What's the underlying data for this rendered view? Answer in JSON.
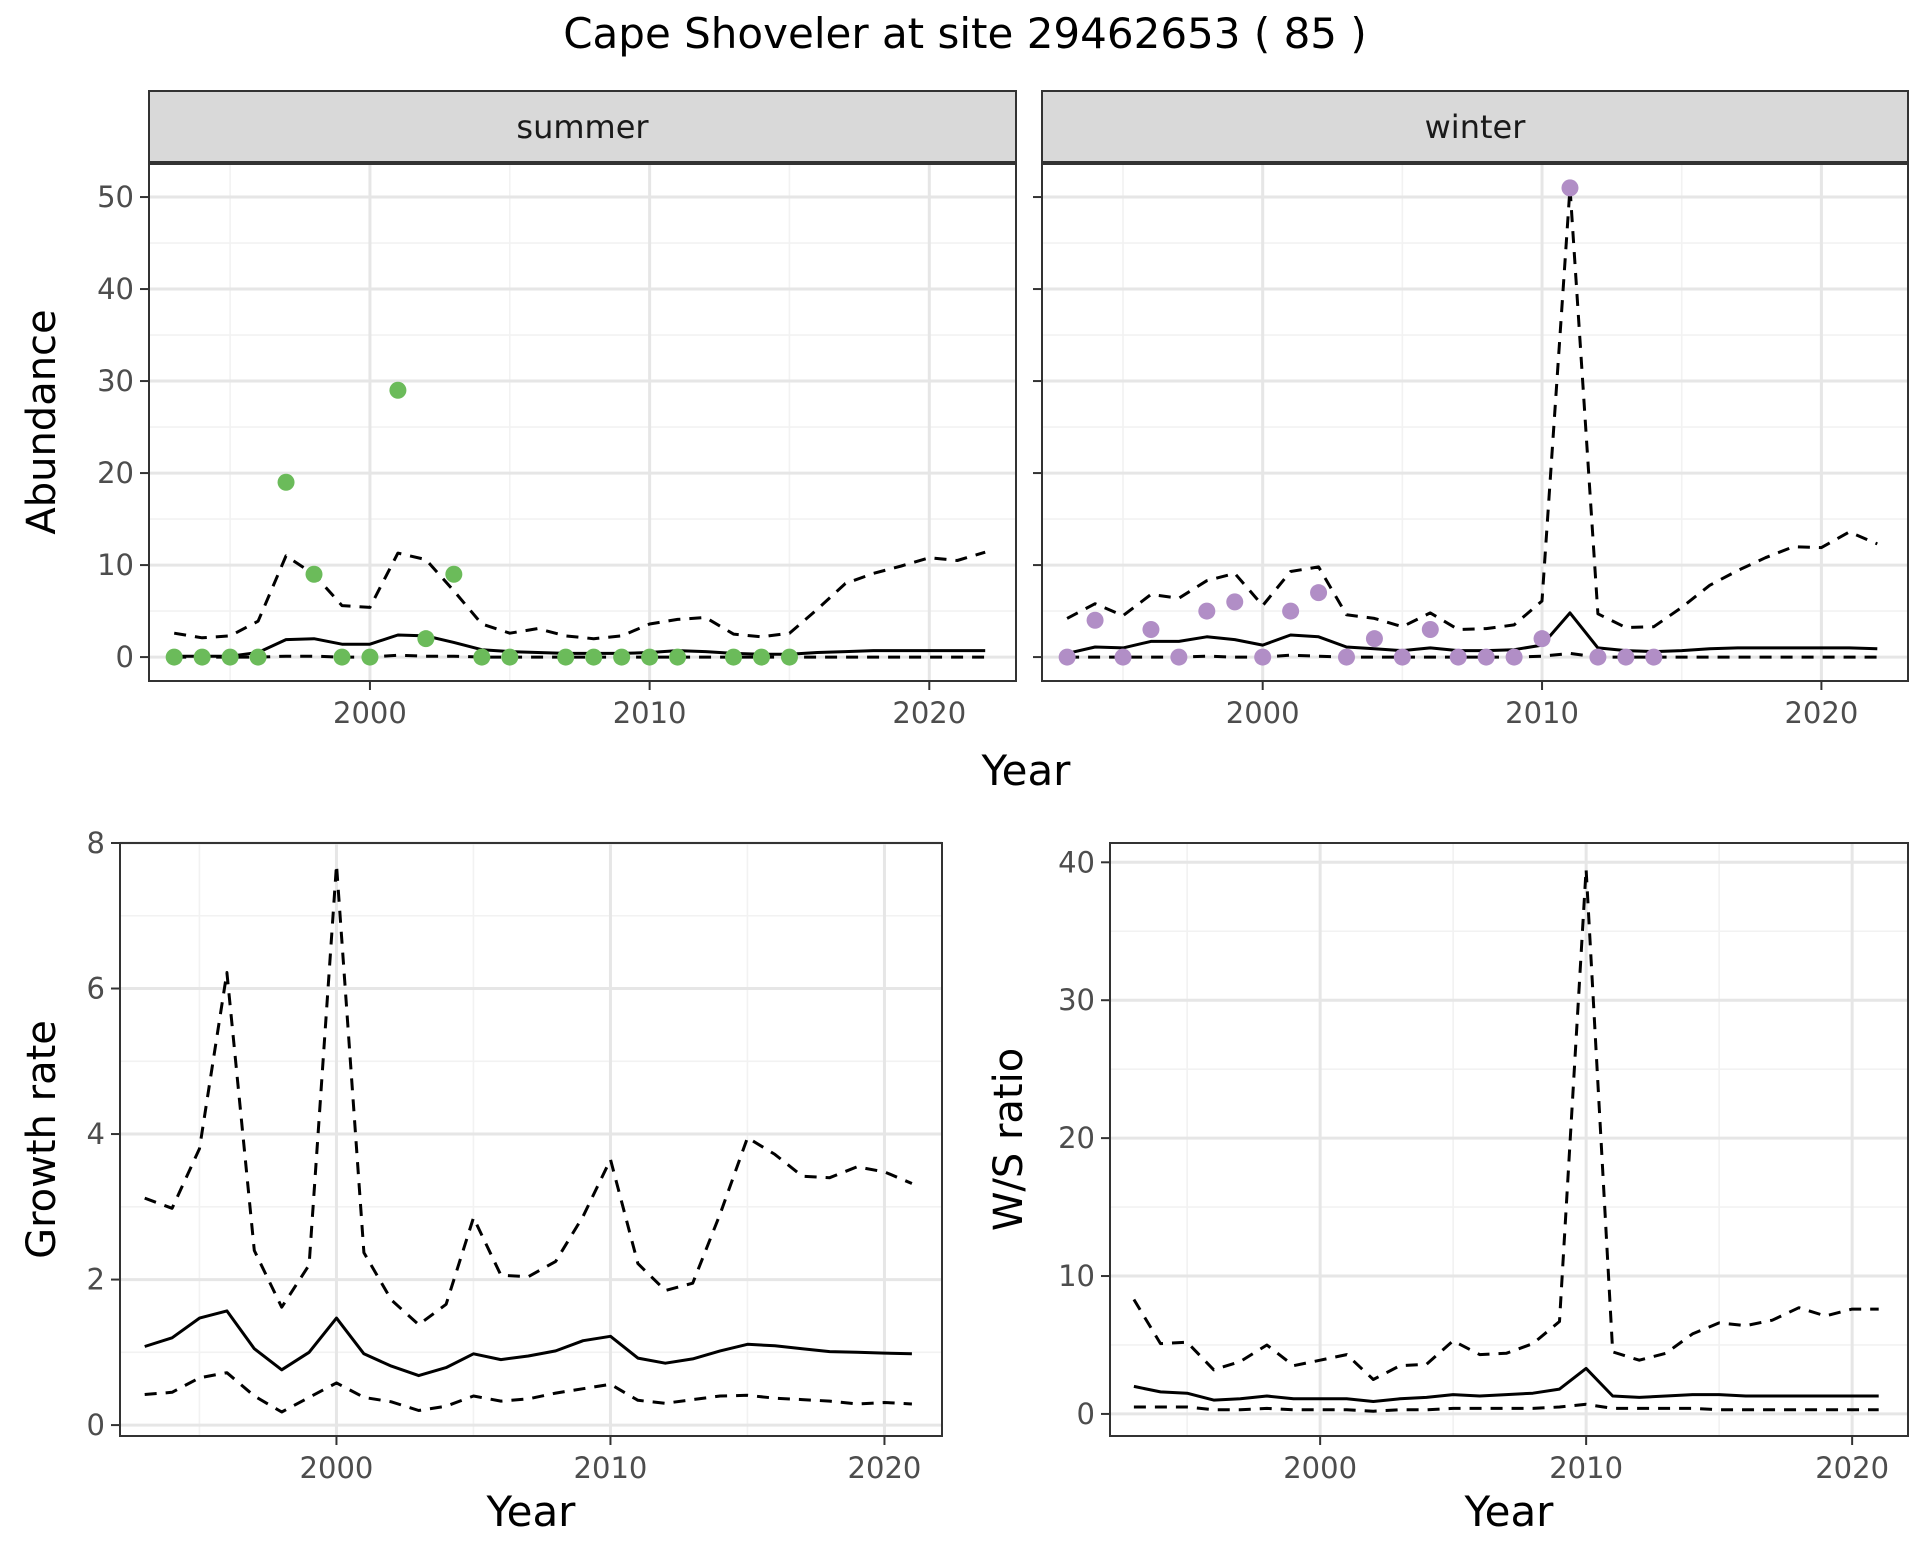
{
  "figure": {
    "title": "Cape Shoveler at site 29462653 ( 85 )",
    "shared_xlabel": "Year"
  },
  "colors": {
    "summer_points": "#6bbb5a",
    "winter_points": "#b18ec6",
    "line": "#000000",
    "strip_bg": "#d9d9d9",
    "grid_major": "#e6e6e6",
    "grid_minor": "#f2f2f2"
  },
  "chart_data": [
    {
      "type": "line",
      "panel": "summer",
      "strip_label": "summer",
      "xlabel": "",
      "ylabel": "Abundance",
      "xlim": [
        1992.1,
        2023.1
      ],
      "ylim": [
        -2.6,
        53.7
      ],
      "xticks": [
        2000,
        2010,
        2020
      ],
      "yticks": [
        0,
        10,
        20,
        30,
        40,
        50
      ],
      "points": {
        "x": [
          1993,
          1994,
          1995,
          1996,
          1997,
          1998,
          1999,
          2000,
          2001,
          2002,
          2003,
          2004,
          2005,
          2007,
          2008,
          2009,
          2010,
          2011,
          2013,
          2014,
          2015
        ],
        "y": [
          0,
          0,
          0,
          0,
          19,
          9,
          0,
          0,
          29,
          2,
          9,
          0,
          0,
          0,
          0,
          0,
          0,
          0,
          0,
          0,
          0
        ]
      },
      "series": [
        {
          "style": "solid",
          "x": [
            1993,
            1994,
            1995,
            1996,
            1997,
            1998,
            1999,
            2000,
            2001,
            2002,
            2003,
            2004,
            2005,
            2006,
            2007,
            2008,
            2009,
            2010,
            2011,
            2012,
            2013,
            2014,
            2015,
            2016,
            2017,
            2018,
            2019,
            2020,
            2021,
            2022
          ],
          "y": [
            0.1,
            0.1,
            0.1,
            0.5,
            1.9,
            2.0,
            1.4,
            1.4,
            2.4,
            2.3,
            1.6,
            0.8,
            0.6,
            0.5,
            0.4,
            0.4,
            0.4,
            0.5,
            0.7,
            0.6,
            0.4,
            0.3,
            0.3,
            0.5,
            0.6,
            0.7,
            0.7,
            0.7,
            0.7,
            0.7
          ]
        },
        {
          "style": "dashed",
          "x": [
            1993,
            1994,
            1995,
            1996,
            1997,
            1998,
            1999,
            2000,
            2001,
            2002,
            2003,
            2004,
            2005,
            2006,
            2007,
            2008,
            2009,
            2010,
            2011,
            2012,
            2013,
            2014,
            2015,
            2016,
            2017,
            2018,
            2019,
            2020,
            2021,
            2022
          ],
          "y": [
            2.6,
            2.1,
            2.3,
            3.9,
            11.0,
            9.0,
            5.6,
            5.4,
            11.3,
            10.6,
            7.2,
            3.6,
            2.6,
            3.1,
            2.3,
            2.0,
            2.3,
            3.6,
            4.1,
            4.3,
            2.5,
            2.2,
            2.6,
            5.2,
            8.0,
            9.1,
            9.9,
            10.8,
            10.5,
            11.4
          ]
        },
        {
          "style": "dashed",
          "x": [
            1993,
            1994,
            1995,
            1996,
            1997,
            1998,
            1999,
            2000,
            2001,
            2002,
            2003,
            2004,
            2005,
            2006,
            2007,
            2008,
            2009,
            2010,
            2011,
            2012,
            2013,
            2014,
            2015,
            2016,
            2017,
            2018,
            2019,
            2020,
            2021,
            2022
          ],
          "y": [
            0,
            0,
            0,
            0,
            0.1,
            0.1,
            0,
            0,
            0.2,
            0.1,
            0.1,
            0,
            0,
            0,
            0,
            0,
            0,
            0,
            0,
            0,
            0,
            0,
            0,
            0,
            0,
            0,
            0,
            0,
            0,
            0
          ]
        }
      ]
    },
    {
      "type": "line",
      "panel": "winter",
      "strip_label": "winter",
      "xlabel": "",
      "ylabel": "",
      "xlim": [
        1992.1,
        2023.1
      ],
      "ylim": [
        -2.6,
        53.7
      ],
      "xticks": [
        2000,
        2010,
        2020
      ],
      "yticks": [
        0,
        10,
        20,
        30,
        40,
        50
      ],
      "points": {
        "x": [
          1993,
          1994,
          1995,
          1996,
          1997,
          1998,
          1999,
          2000,
          2001,
          2002,
          2003,
          2004,
          2005,
          2006,
          2007,
          2008,
          2009,
          2010,
          2011,
          2012,
          2013,
          2014
        ],
        "y": [
          0,
          4,
          0,
          3,
          0,
          5,
          6,
          0,
          5,
          7,
          0,
          2,
          0,
          3,
          0,
          0,
          0,
          2,
          51,
          0,
          0,
          0
        ]
      },
      "series": [
        {
          "style": "solid",
          "x": [
            1993,
            1994,
            1995,
            1996,
            1997,
            1998,
            1999,
            2000,
            2001,
            2002,
            2003,
            2004,
            2005,
            2006,
            2007,
            2008,
            2009,
            2010,
            2011,
            2012,
            2013,
            2014,
            2015,
            2016,
            2017,
            2018,
            2019,
            2020,
            2021,
            2022
          ],
          "y": [
            0.4,
            1.1,
            1.0,
            1.7,
            1.7,
            2.2,
            1.9,
            1.3,
            2.4,
            2.2,
            1.1,
            0.9,
            0.7,
            1.0,
            0.7,
            0.7,
            0.8,
            1.3,
            4.8,
            1.0,
            0.7,
            0.6,
            0.7,
            0.9,
            1.0,
            1.0,
            1.0,
            1.0,
            1.0,
            0.9
          ]
        },
        {
          "style": "dashed",
          "x": [
            1993,
            1994,
            1995,
            1996,
            1997,
            1998,
            1999,
            2000,
            2001,
            2002,
            2003,
            2004,
            2005,
            2006,
            2007,
            2008,
            2009,
            2010,
            2011,
            2012,
            2013,
            2014,
            2015,
            2016,
            2017,
            2018,
            2019,
            2020,
            2021,
            2022
          ],
          "y": [
            4.2,
            5.8,
            4.5,
            6.8,
            6.4,
            8.3,
            9.1,
            5.6,
            9.3,
            9.8,
            4.6,
            4.2,
            3.3,
            4.8,
            3.0,
            3.1,
            3.5,
            6.1,
            51.0,
            4.7,
            3.2,
            3.3,
            5.4,
            7.8,
            9.4,
            10.8,
            12.0,
            11.9,
            13.6,
            12.3
          ]
        },
        {
          "style": "dashed",
          "x": [
            1993,
            1994,
            1995,
            1996,
            1997,
            1998,
            1999,
            2000,
            2001,
            2002,
            2003,
            2004,
            2005,
            2006,
            2007,
            2008,
            2009,
            2010,
            2011,
            2012,
            2013,
            2014,
            2015,
            2016,
            2017,
            2018,
            2019,
            2020,
            2021,
            2022
          ],
          "y": [
            0,
            0,
            0,
            0,
            0,
            0.1,
            0,
            0,
            0.2,
            0.1,
            0,
            0,
            0,
            0,
            0,
            0,
            0,
            0.1,
            0.4,
            0,
            0,
            0,
            0,
            0,
            0,
            0,
            0,
            0,
            0,
            0
          ]
        }
      ]
    },
    {
      "type": "line",
      "panel": "growth",
      "strip_label": "",
      "xlabel": "Year",
      "ylabel": "Growth rate",
      "xlim": [
        1992.1,
        2022.1
      ],
      "ylim": [
        -0.15,
        8.0
      ],
      "xticks": [
        2000,
        2010,
        2020
      ],
      "yticks": [
        0,
        2,
        4,
        6,
        8
      ],
      "series": [
        {
          "style": "solid",
          "x": [
            1993,
            1994,
            1995,
            1996,
            1997,
            1998,
            1999,
            2000,
            2001,
            2002,
            2003,
            2004,
            2005,
            2006,
            2007,
            2008,
            2009,
            2010,
            2011,
            2012,
            2013,
            2014,
            2015,
            2016,
            2017,
            2018,
            2019,
            2020,
            2021
          ],
          "y": [
            1.08,
            1.2,
            1.47,
            1.57,
            1.05,
            0.76,
            1.0,
            1.47,
            0.98,
            0.81,
            0.68,
            0.79,
            0.98,
            0.9,
            0.95,
            1.02,
            1.16,
            1.22,
            0.92,
            0.85,
            0.91,
            1.02,
            1.11,
            1.09,
            1.05,
            1.01,
            1.0,
            0.99,
            0.98
          ]
        },
        {
          "style": "dashed",
          "x": [
            1993,
            1994,
            1995,
            1996,
            1997,
            1998,
            1999,
            2000,
            2001,
            2002,
            2003,
            2004,
            2005,
            2006,
            2007,
            2008,
            2009,
            2010,
            2011,
            2012,
            2013,
            2014,
            2015,
            2016,
            2017,
            2018,
            2019,
            2020,
            2021
          ],
          "y": [
            3.12,
            2.98,
            3.8,
            6.22,
            2.4,
            1.62,
            2.2,
            7.7,
            2.37,
            1.72,
            1.38,
            1.66,
            2.85,
            2.06,
            2.04,
            2.25,
            2.87,
            3.65,
            2.22,
            1.85,
            1.95,
            2.9,
            3.95,
            3.72,
            3.42,
            3.4,
            3.55,
            3.48,
            3.32
          ]
        },
        {
          "style": "dashed",
          "x": [
            1993,
            1994,
            1995,
            1996,
            1997,
            1998,
            1999,
            2000,
            2001,
            2002,
            2003,
            2004,
            2005,
            2006,
            2007,
            2008,
            2009,
            2010,
            2011,
            2012,
            2013,
            2014,
            2015,
            2016,
            2017,
            2018,
            2019,
            2020,
            2021
          ],
          "y": [
            0.42,
            0.45,
            0.65,
            0.72,
            0.4,
            0.18,
            0.38,
            0.58,
            0.38,
            0.32,
            0.2,
            0.26,
            0.4,
            0.33,
            0.36,
            0.44,
            0.5,
            0.56,
            0.34,
            0.3,
            0.35,
            0.4,
            0.41,
            0.37,
            0.35,
            0.33,
            0.29,
            0.31,
            0.29
          ]
        }
      ]
    },
    {
      "type": "line",
      "panel": "ratio",
      "strip_label": "",
      "xlabel": "Year",
      "ylabel": "W/S ratio",
      "xlim": [
        1992.1,
        2022.1
      ],
      "ylim": [
        -1.6,
        41.4
      ],
      "xticks": [
        2000,
        2010,
        2020
      ],
      "yticks": [
        0,
        10,
        20,
        30,
        40
      ],
      "series": [
        {
          "style": "solid",
          "x": [
            1993,
            1994,
            1995,
            1996,
            1997,
            1998,
            1999,
            2000,
            2001,
            2002,
            2003,
            2004,
            2005,
            2006,
            2007,
            2008,
            2009,
            2010,
            2011,
            2012,
            2013,
            2014,
            2015,
            2016,
            2017,
            2018,
            2019,
            2020,
            2021
          ],
          "y": [
            2.0,
            1.6,
            1.5,
            1.0,
            1.1,
            1.3,
            1.1,
            1.1,
            1.1,
            0.9,
            1.1,
            1.2,
            1.4,
            1.3,
            1.4,
            1.5,
            1.8,
            3.3,
            1.3,
            1.2,
            1.3,
            1.4,
            1.4,
            1.3,
            1.3,
            1.3,
            1.3,
            1.3,
            1.3
          ]
        },
        {
          "style": "dashed",
          "x": [
            1993,
            1994,
            1995,
            1996,
            1997,
            1998,
            1999,
            2000,
            2001,
            2002,
            2003,
            2004,
            2005,
            2006,
            2007,
            2008,
            2009,
            2010,
            2011,
            2012,
            2013,
            2014,
            2015,
            2016,
            2017,
            2018,
            2019,
            2020,
            2021
          ],
          "y": [
            8.3,
            5.1,
            5.2,
            3.2,
            3.8,
            5.0,
            3.5,
            3.9,
            4.3,
            2.5,
            3.5,
            3.6,
            5.3,
            4.3,
            4.4,
            5.1,
            6.7,
            39.5,
            4.5,
            3.9,
            4.4,
            5.8,
            6.6,
            6.4,
            6.8,
            7.7,
            7.1,
            7.6,
            7.6
          ]
        },
        {
          "style": "dashed",
          "x": [
            1993,
            1994,
            1995,
            1996,
            1997,
            1998,
            1999,
            2000,
            2001,
            2002,
            2003,
            2004,
            2005,
            2006,
            2007,
            2008,
            2009,
            2010,
            2011,
            2012,
            2013,
            2014,
            2015,
            2016,
            2017,
            2018,
            2019,
            2020,
            2021
          ],
          "y": [
            0.5,
            0.5,
            0.5,
            0.3,
            0.3,
            0.4,
            0.3,
            0.3,
            0.3,
            0.2,
            0.3,
            0.3,
            0.4,
            0.4,
            0.4,
            0.4,
            0.5,
            0.7,
            0.4,
            0.4,
            0.4,
            0.4,
            0.3,
            0.3,
            0.3,
            0.3,
            0.3,
            0.3,
            0.3
          ]
        }
      ]
    }
  ]
}
